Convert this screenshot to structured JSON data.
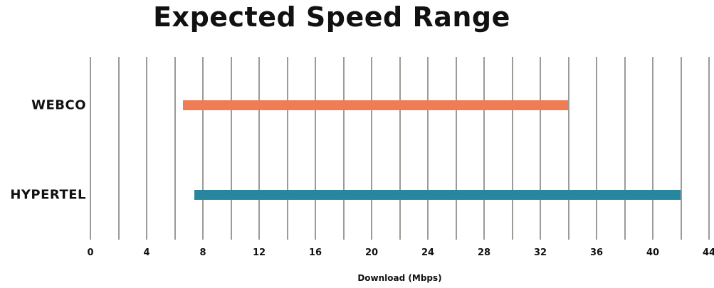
{
  "title": "Expected Speed Range",
  "colors": {
    "background": "#FFFFFF",
    "text": "#111111",
    "gridline": "#9E9A96",
    "webco_bar": "#F07C53",
    "hypertel_bar": "#28869E"
  },
  "chart_data": {
    "type": "bar",
    "subtype": "horizontal-range-bars",
    "title": "Expected Speed Range",
    "xlabel": "Download (Mbps)",
    "ylabel": "",
    "xlim": [
      0,
      44
    ],
    "x_ticks": [
      0,
      4,
      8,
      12,
      16,
      20,
      24,
      28,
      32,
      36,
      40,
      44
    ],
    "gridline_step": 2,
    "grid": true,
    "legend": "none",
    "categories": [
      "WEBCO",
      "HYPERTEL"
    ],
    "series": [
      {
        "name": "WEBCO",
        "range_mbps": [
          6.6,
          34.0
        ],
        "color": "#F07C53"
      },
      {
        "name": "HYPERTEL",
        "range_mbps": [
          7.4,
          42.0
        ],
        "color": "#28869E"
      }
    ]
  }
}
